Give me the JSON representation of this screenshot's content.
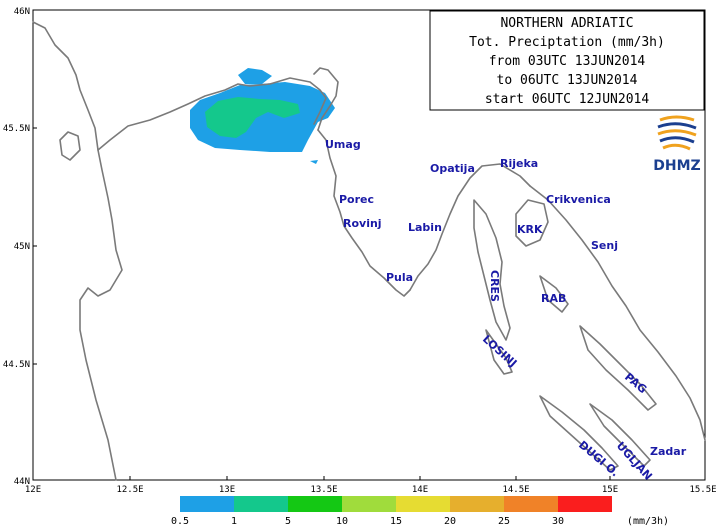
{
  "title": {
    "lines": [
      "NORTHERN ADRIATIC",
      "Tot. Preciptation (mm/3h)",
      "from 03UTC 13JUN2014",
      "to 06UTC 13JUN2014",
      "start 06UTC 12JUN2014"
    ]
  },
  "logo": {
    "text": "DHMZ"
  },
  "axes": {
    "x_ticks": [
      "12E",
      "12.5E",
      "13E",
      "13.5E",
      "14E",
      "14.5E",
      "15E",
      "15.5E"
    ],
    "y_ticks": [
      "46N",
      "45.5N",
      "45N",
      "44.5N",
      "44N"
    ]
  },
  "places": [
    {
      "label": "Umag",
      "key": "umag"
    },
    {
      "label": "Porec",
      "key": "porec"
    },
    {
      "label": "Rovinj",
      "key": "rovinj"
    },
    {
      "label": "Pula",
      "key": "pula"
    },
    {
      "label": "Labin",
      "key": "labin"
    },
    {
      "label": "Opatija",
      "key": "opatija"
    },
    {
      "label": "Rijeka",
      "key": "rijeka"
    },
    {
      "label": "Crikvenica",
      "key": "crikvenica"
    },
    {
      "label": "KRK",
      "key": "krk"
    },
    {
      "label": "Senj",
      "key": "senj"
    },
    {
      "label": "RAB",
      "key": "rab"
    },
    {
      "label": "CRES",
      "key": "cres"
    },
    {
      "label": "LOSINJ",
      "key": "losinj"
    },
    {
      "label": "PAG",
      "key": "pag"
    },
    {
      "label": "UGLJAN",
      "key": "ugljan"
    },
    {
      "label": "DUGI O.",
      "key": "dugi"
    },
    {
      "label": "Zadar",
      "key": "zadar"
    }
  ],
  "legend": {
    "unit": "(mm/3h)",
    "bins": [
      {
        "label": "0.5",
        "color": "#1ea0e6"
      },
      {
        "label": "1",
        "color": "#14c88c"
      },
      {
        "label": "5",
        "color": "#14c814"
      },
      {
        "label": "10",
        "color": "#a0dc3c"
      },
      {
        "label": "15",
        "color": "#e6dc32"
      },
      {
        "label": "20",
        "color": "#e6af2d"
      },
      {
        "label": "25",
        "color": "#f08228"
      },
      {
        "label": "30",
        "color": "#fa1e1e"
      }
    ]
  },
  "colors": {
    "precip_light": "#1ea0e6",
    "precip_moderate": "#14c88c",
    "coastline": "#7a7a7a",
    "place_labels": "#1a1aa6"
  }
}
